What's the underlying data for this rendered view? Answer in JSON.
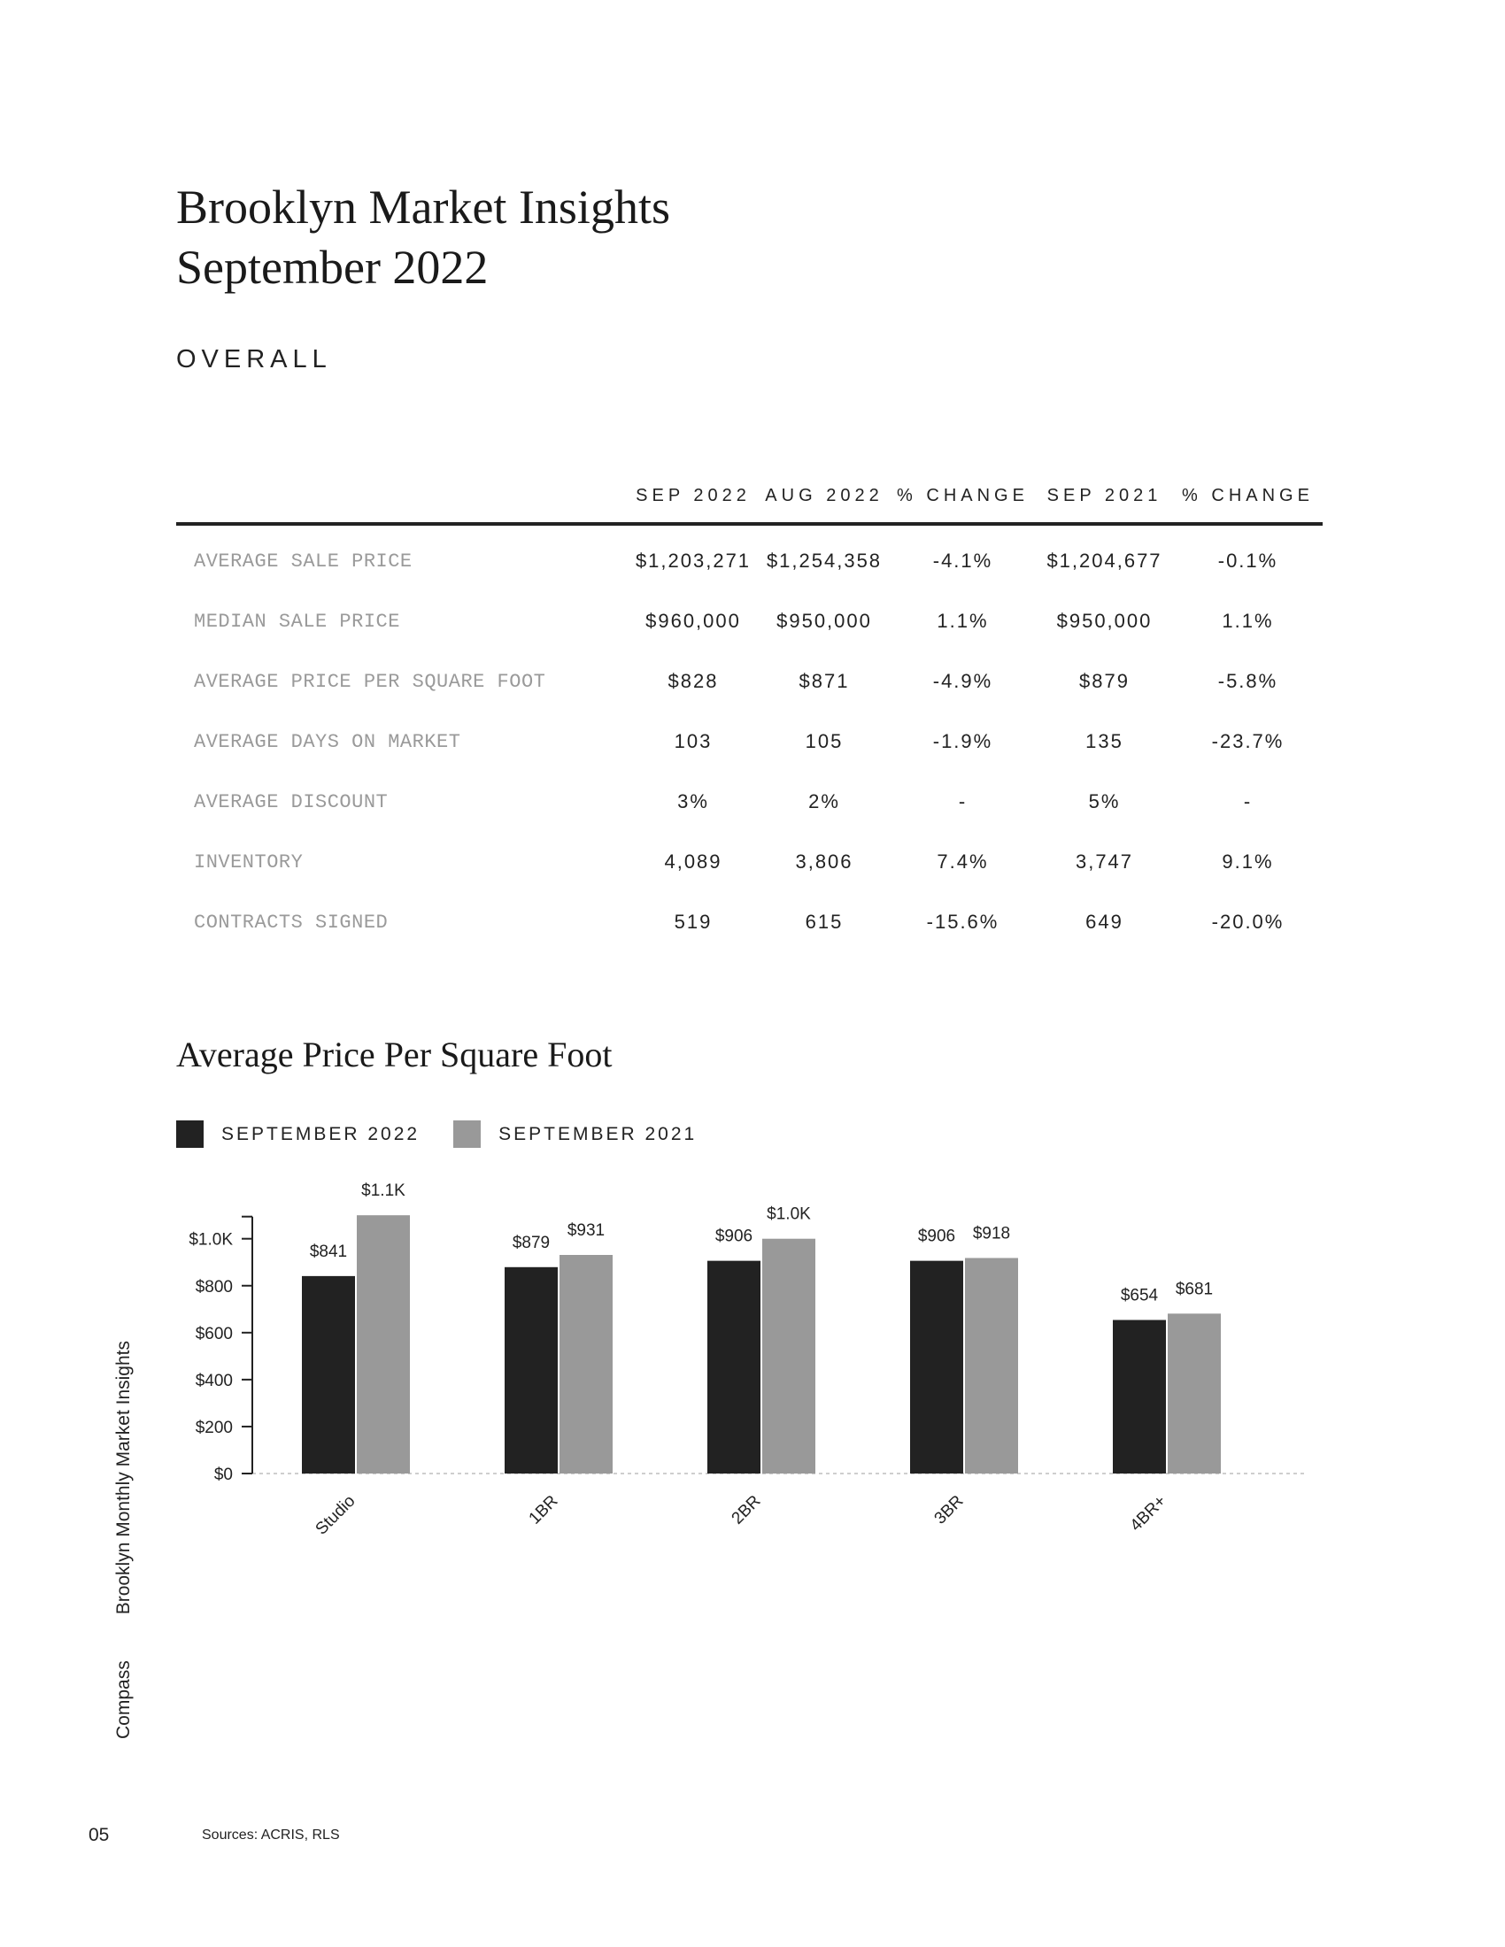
{
  "header": {
    "title_line1": "Brooklyn Market Insights",
    "title_line2": "September 2022",
    "section": "OVERALL"
  },
  "table": {
    "columns": [
      "",
      "SEP 2022",
      "AUG 2022",
      "% CHANGE",
      "SEP 2021",
      "% CHANGE"
    ],
    "rows": [
      {
        "metric": "AVERAGE SALE PRICE",
        "values": [
          "$1,203,271",
          "$1,254,358",
          "-4.1%",
          "$1,204,677",
          "-0.1%"
        ]
      },
      {
        "metric": "MEDIAN SALE PRICE",
        "values": [
          "$960,000",
          "$950,000",
          "1.1%",
          "$950,000",
          "1.1%"
        ]
      },
      {
        "metric": "AVERAGE PRICE PER SQUARE FOOT",
        "values": [
          "$828",
          "$871",
          "-4.9%",
          "$879",
          "-5.8%"
        ]
      },
      {
        "metric": "AVERAGE DAYS ON MARKET",
        "values": [
          "103",
          "105",
          "-1.9%",
          "135",
          "-23.7%"
        ]
      },
      {
        "metric": "AVERAGE DISCOUNT",
        "values": [
          "3%",
          "2%",
          "-",
          "5%",
          "-"
        ]
      },
      {
        "metric": "INVENTORY",
        "values": [
          "4,089",
          "3,806",
          "7.4%",
          "3,747",
          "9.1%"
        ]
      },
      {
        "metric": "CONTRACTS SIGNED",
        "values": [
          "519",
          "615",
          "-15.6%",
          "649",
          "-20.0%"
        ]
      }
    ]
  },
  "chart_data": {
    "type": "bar",
    "title": "Average Price Per Square Foot",
    "categories": [
      "Studio",
      "1BR",
      "2BR",
      "3BR",
      "4BR+"
    ],
    "series": [
      {
        "name": "SEPTEMBER 2022",
        "color": "#222222",
        "values": [
          841,
          879,
          906,
          906,
          654
        ],
        "labels": [
          "$841",
          "$879",
          "$906",
          "$906",
          "$654"
        ]
      },
      {
        "name": "SEPTEMBER 2021",
        "color": "#999999",
        "values": [
          1100,
          931,
          1000,
          918,
          681
        ],
        "labels": [
          "$1.1K",
          "$931",
          "$1.0K",
          "$918",
          "$681"
        ]
      }
    ],
    "yticks": [
      {
        "value": 0,
        "label": "$0"
      },
      {
        "value": 200,
        "label": "$200"
      },
      {
        "value": 400,
        "label": "$400"
      },
      {
        "value": 600,
        "label": "$600"
      },
      {
        "value": 800,
        "label": "$800"
      },
      {
        "value": 1000,
        "label": "$1.0K"
      }
    ],
    "ylim": [
      0,
      1100
    ],
    "xlabel": "",
    "ylabel": "",
    "legend": "top-left",
    "grid": false
  },
  "footer": {
    "brand": "Compass",
    "publication": "Brooklyn Monthly Market Insights",
    "page_number": "05",
    "sources": "Sources: ACRIS, RLS"
  }
}
